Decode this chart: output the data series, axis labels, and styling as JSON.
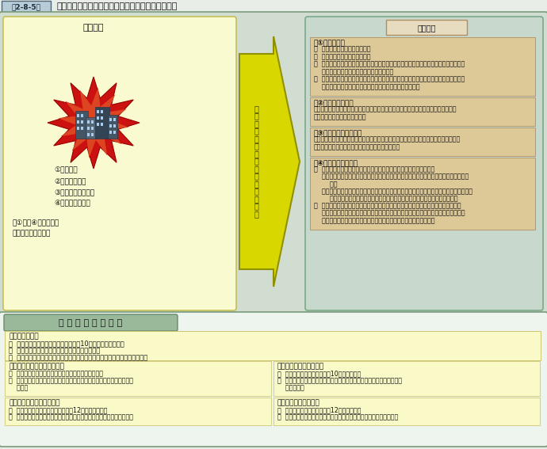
{
  "title_box": "第2-8-5図",
  "title_text": "緊急消防援助隊の基本的な出動とアクションプラン",
  "bg_outer": "#e8ede8",
  "bg_main": "#d0ddd0",
  "left_panel_bg": "#fafad0",
  "right_panel_bg": "#c8d8cc",
  "right_box_bg": "#ddc898",
  "bottom_panel_bg": "#f5faf5",
  "bottom_header_bg": "#9ab89a",
  "arrow_fill": "#e0e020",
  "arrow_edge": "#909000",
  "disaster_title": "災害発生",
  "disaster_items": [
    "①東海地震",
    "②首都直下地震",
    "③東南海・南海地震",
    "④南海トラフ地震"
  ],
  "disaster_other": [
    "・①から④以外の地震",
    "・その他の自然災害"
  ],
  "arrow_text": "各アクションプランに基づく対応",
  "right_title": "適用基準",
  "sec1_header": "【①東海地震】",
  "sec1_lines": [
    "１  東海地震に係る注意情報発表",
    "２  東海地震に係る警戒宣言発令",
    "３  １、２の場合に強化地域８都県中１の都県で震度６弱（特別区、政令指定都市につい",
    "    ては震度５強）以上の地震が発生した場合",
    "４  想定震源域内を震源とし、強化地域８都県中２以上の都県で震度６弱（特別区、政令",
    "    指定都市については震度５強）以上の地震が発生した場合"
  ],
  "sec2_header": "【②首都直下地震】",
  "sec2_lines": [
    "被害想定４都県中２以上の都県で震度６弱（特別区、政令指定都市については震度５",
    "強）以上の地震が発生した場合"
  ],
  "sec3_header": "【③東南海・南海地震】",
  "sec3_lines": [
    "想定震源域内を震源とし、緊急消防援助隊出動対象県６県中２以上の県で震度６弱（政",
    "令指定都市は震度５強）以上の地震が発生した場合"
  ],
  "sec4_header": "【④南海トラフ地震】",
  "sec4_lines": [
    "１  以下の（１）、（２）の条件をいずれも満たす地震が発生した場合",
    "    （１）発生した地震の震央地名が南海トラフ地震の想定震源断層域の地名のいずれかに",
    "        該当",
    "    （２）発生した地震により中部地方、近畿地方及び四国・九州地方の３地域のいずれにお",
    "        いても、震度６強以上が観測された場合、又は大津波警報が発表された場合",
    "２  上記１の条件を満たす地震が発生した場合の他、南海トラフ地震の被害と同程度の",
    "    被害が見込まれ、又はアクションプランに基づき緊急消防援助隊を運用することによ",
    "    り、迅速かつ的確な対応が可能であると消防庁長官が判断した場合"
  ],
  "bottom_title": "基 本 的 な 出 動 計 画",
  "cmd_header": "【指揮支援隊】",
  "cmd_lines": [
    "１  全国を８ブロックに分け、各６から10の指揮支援隊を指定",
    "２  各指揮支援隊から、指揮支援部隊長を１隊指定",
    "３  災害発生地、災害規模等を考慮し、必要な指揮支援隊に出動要請等を行う"
  ],
  "ken1_header": "【第１次出動都道府県大隊】",
  "ken1_lines": [
    "１  被災想定都道府県に対し、近隣の４都道府県を指定",
    "２  災害発生地及び災害規模等を考慮し、必要な都道府県に対し出動要請",
    "    を行う"
  ],
  "ken2_header": "【出動準備都道府県大隊】",
  "ken2_lines": [
    "１  被災想定都道府県に対し、近隣の12都道府県を指定",
    "２  第１次出動都道府県大隊で不足する場合、必要に応じ出動要請を行う"
  ],
  "air1_header": "【第１次出動航空小隊】",
  "air1_lines": [
    "１  被災想定都道府県に対し、10航空隊を指定",
    "２  災害発生地及び運航可能機体等を考慮し、必要な航空隊に対し出動要",
    "    請等を行う"
  ],
  "air2_header": "【出動準備航空小隊】",
  "air2_lines": [
    "１  被災想定都道府県に対し、12航空隊を指定",
    "２  第１次出動航空部隊で不足する場合、必要に応じて出動要請を行う"
  ]
}
